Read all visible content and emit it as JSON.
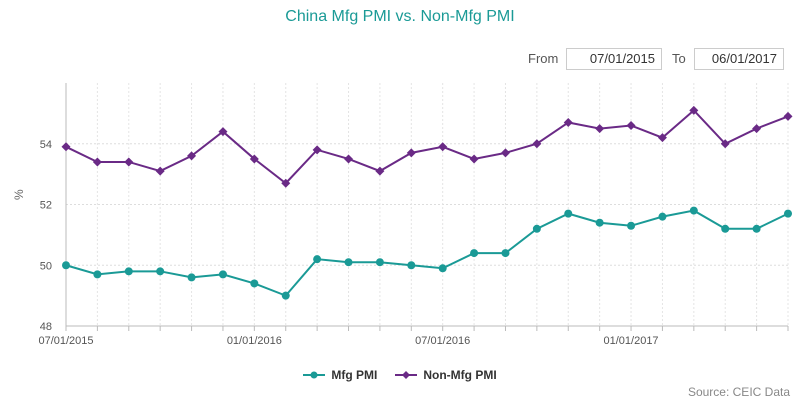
{
  "chart_data": {
    "type": "line",
    "title": "China Mfg PMI vs. Non-Mfg PMI",
    "ylabel": "%",
    "ylim": [
      48,
      56
    ],
    "yticks": [
      48,
      50,
      52,
      54
    ],
    "x": [
      "2015-07",
      "2015-08",
      "2015-09",
      "2015-10",
      "2015-11",
      "2015-12",
      "2016-01",
      "2016-02",
      "2016-03",
      "2016-04",
      "2016-05",
      "2016-06",
      "2016-07",
      "2016-08",
      "2016-09",
      "2016-10",
      "2016-11",
      "2016-12",
      "2017-01",
      "2017-02",
      "2017-03",
      "2017-04",
      "2017-05",
      "2017-06"
    ],
    "xtick_labels": [
      {
        "x": "2015-07",
        "label": "07/01/2015"
      },
      {
        "x": "2016-01",
        "label": "01/01/2016"
      },
      {
        "x": "2016-07",
        "label": "07/01/2016"
      },
      {
        "x": "2017-01",
        "label": "01/01/2017"
      }
    ],
    "series": [
      {
        "name": "Mfg PMI",
        "color": "#1a9a96",
        "marker": "circle",
        "values": [
          50.0,
          49.7,
          49.8,
          49.8,
          49.6,
          49.7,
          49.4,
          49.0,
          50.2,
          50.1,
          50.1,
          50.0,
          49.9,
          50.4,
          50.4,
          51.2,
          51.7,
          51.4,
          51.3,
          51.6,
          51.8,
          51.2,
          51.2,
          51.7
        ]
      },
      {
        "name": "Non-Mfg PMI",
        "color": "#6a2a86",
        "marker": "diamond",
        "values": [
          53.9,
          53.4,
          53.4,
          53.1,
          53.6,
          54.4,
          53.5,
          52.7,
          53.8,
          53.5,
          53.1,
          53.7,
          53.9,
          53.5,
          53.7,
          54.0,
          54.7,
          54.5,
          54.6,
          54.2,
          55.1,
          54.0,
          54.5,
          54.9
        ]
      }
    ],
    "grid": true,
    "legend_position": "bottom"
  },
  "range": {
    "from_label": "From",
    "from_value": "07/01/2015",
    "to_label": "To",
    "to_value": "06/01/2017"
  },
  "source": "Source: CEIC Data"
}
